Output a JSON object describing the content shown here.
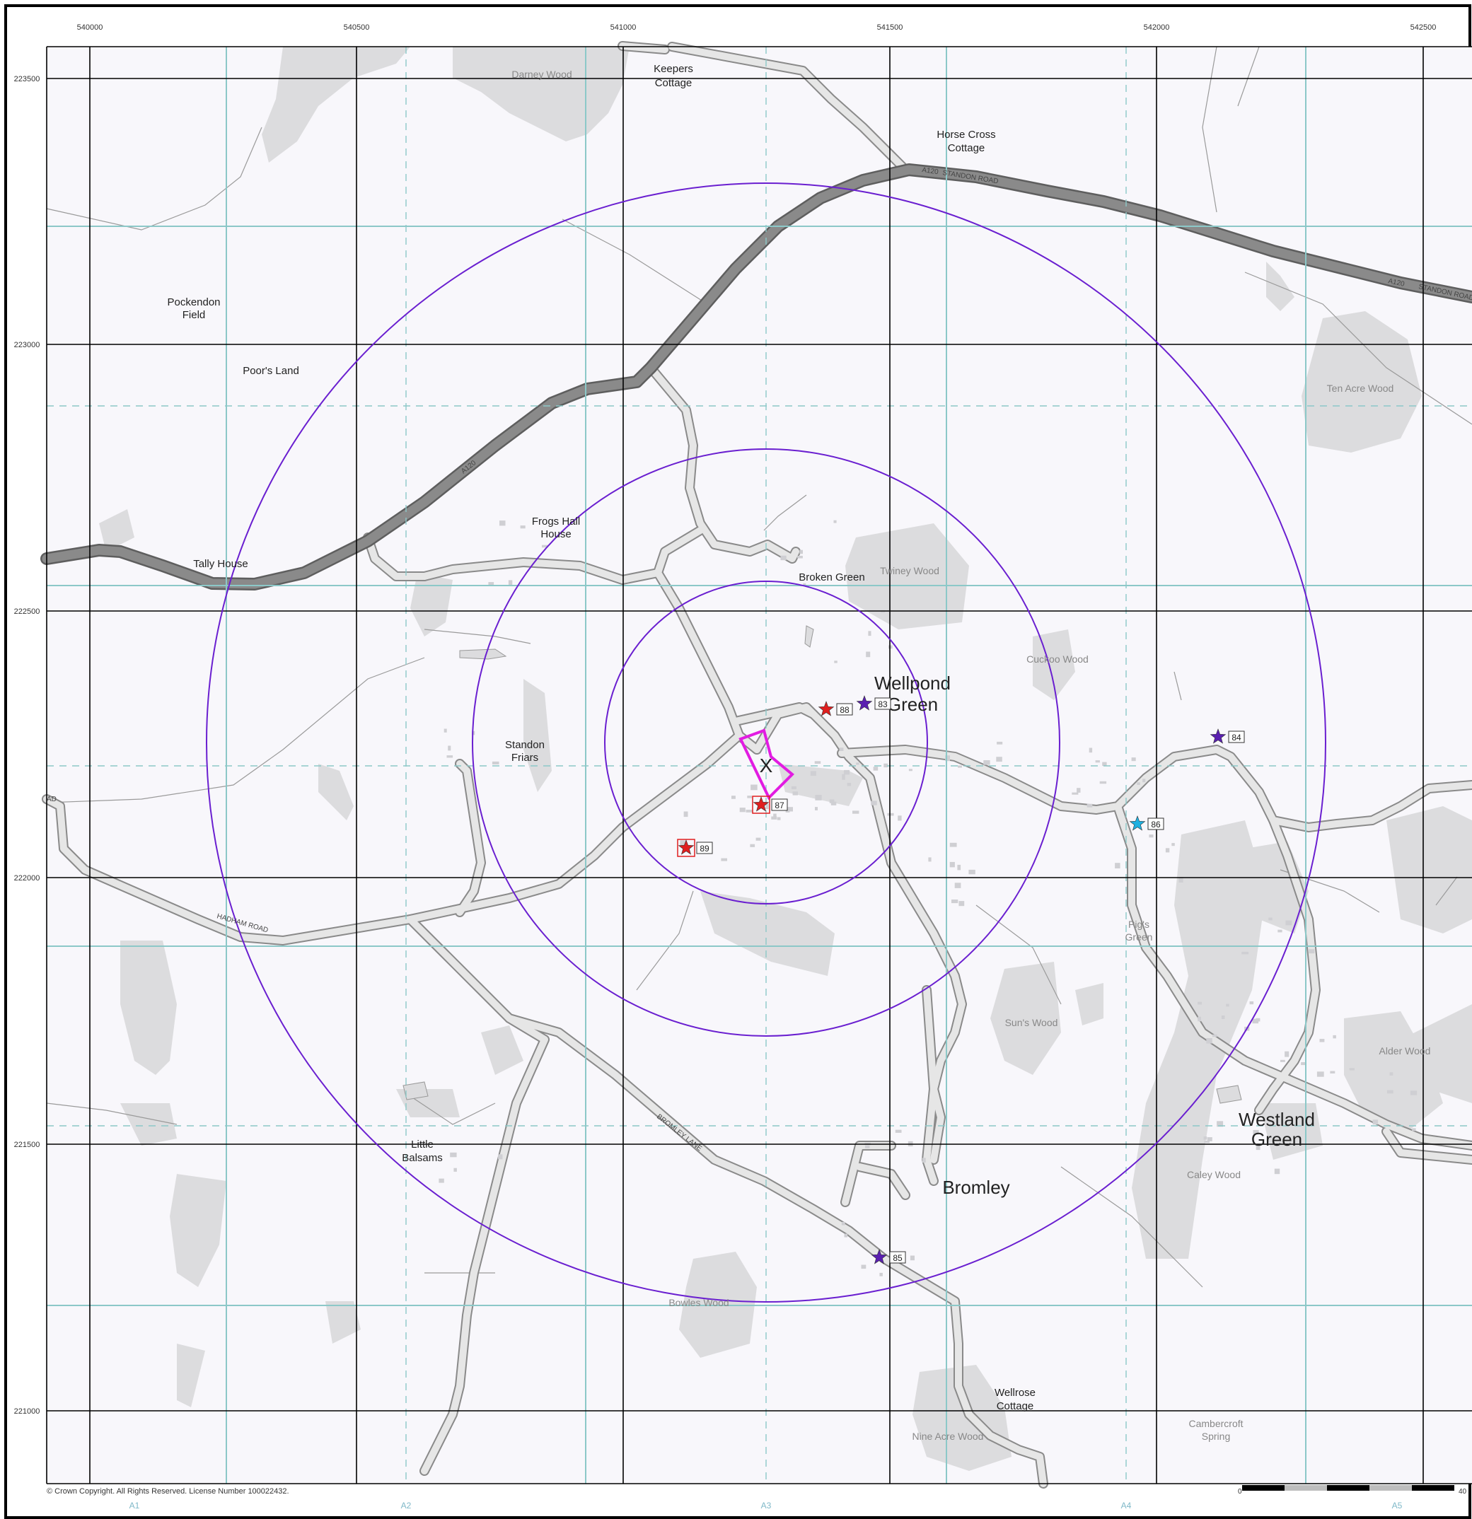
{
  "map": {
    "eastings": [
      "540000",
      "540500",
      "541000",
      "541500",
      "542000",
      "542500"
    ],
    "northings": [
      "223500",
      "223000",
      "222500",
      "222000",
      "221500",
      "221000"
    ],
    "sheet_labels": [
      "A1",
      "A2",
      "A3",
      "A4",
      "A5"
    ],
    "copyright": "© Crown Copyright. All Rights Reserved. License Number 100022432.",
    "scale_bar": {
      "start": "0",
      "end": "40"
    },
    "site_marker": "X",
    "colors": {
      "background": "#f8f7fb",
      "woodland": "#dcdcde",
      "road_fill": "#e6e6e6",
      "road_casing": "#8a8a8a",
      "a_road": "#7a7a7a",
      "buffer_ring": "#6a1fd0",
      "site_boundary": "#e21ce2",
      "major_grid": "#000000",
      "sheet_grid": "#8cc8c8"
    },
    "places": [
      {
        "name": "Keepers",
        "line2": "Cottage"
      },
      {
        "name": "Horse Cross",
        "line2": "Cottage"
      },
      {
        "name": "Pockendon",
        "line2": "Field"
      },
      {
        "name": "Poor's Land",
        "line2": ""
      },
      {
        "name": "Tally House",
        "line2": ""
      },
      {
        "name": "Frogs Hall",
        "line2": "House"
      },
      {
        "name": "Broken Green",
        "line2": ""
      },
      {
        "name": "Standon",
        "line2": "Friars"
      },
      {
        "name": "Wellpond",
        "line2": "Green"
      },
      {
        "name": "Pig's",
        "line2": "Green"
      },
      {
        "name": "Westland",
        "line2": "Green"
      },
      {
        "name": "Bromley",
        "line2": ""
      },
      {
        "name": "Little",
        "line2": "Balsams"
      },
      {
        "name": "Wellrose",
        "line2": "Cottage"
      },
      {
        "name": "Cambercroft",
        "line2": "Spring"
      }
    ],
    "woods": [
      "Darney Wood",
      "Ten Acre Wood",
      "Twiney Wood",
      "Cuckoo Wood",
      "Sun's Wood",
      "Alder Wood",
      "Caley Wood",
      "Bowles Wood",
      "Nine Acre Wood"
    ],
    "road_labels": [
      "A120",
      "STANDON ROAD",
      "A120",
      "A120",
      "STANDON ROAD",
      "HADHAM ROAD",
      "BROMLEY LANE",
      "AD"
    ],
    "points": [
      {
        "id": "83",
        "color": "#5a1fb0",
        "boxed": false
      },
      {
        "id": "84",
        "color": "#5a1fb0",
        "boxed": false
      },
      {
        "id": "85",
        "color": "#5a1fb0",
        "boxed": false
      },
      {
        "id": "86",
        "color": "#1fb0e0",
        "boxed": false
      },
      {
        "id": "87",
        "color": "#e01f1f",
        "boxed": true
      },
      {
        "id": "88",
        "color": "#e01f1f",
        "boxed": false
      },
      {
        "id": "89",
        "color": "#e01f1f",
        "boxed": true
      }
    ]
  }
}
